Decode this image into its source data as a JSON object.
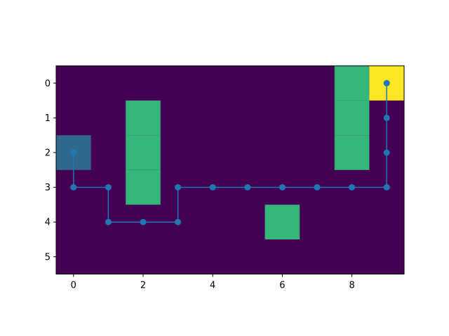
{
  "chart_data": {
    "type": "heatmap",
    "title": "",
    "xlabel": "",
    "ylabel": "",
    "rows": 6,
    "cols": 10,
    "xlim": [
      -0.5,
      9.5
    ],
    "ylim": [
      5.5,
      -0.5
    ],
    "y_inverted": true,
    "grid": false,
    "xticks": [
      0,
      2,
      4,
      6,
      8
    ],
    "yticks": [
      0,
      1,
      2,
      3,
      4,
      5
    ],
    "colors": {
      "empty": "#440154",
      "obstacle": "#35b779",
      "goal": "#fde725",
      "start": "#31688e",
      "path": "#1f77b4"
    },
    "cells": [
      {
        "row": 0,
        "col": 8,
        "kind": "obstacle"
      },
      {
        "row": 1,
        "col": 8,
        "kind": "obstacle"
      },
      {
        "row": 2,
        "col": 8,
        "kind": "obstacle"
      },
      {
        "row": 1,
        "col": 2,
        "kind": "obstacle"
      },
      {
        "row": 2,
        "col": 2,
        "kind": "obstacle"
      },
      {
        "row": 3,
        "col": 2,
        "kind": "obstacle"
      },
      {
        "row": 4,
        "col": 6,
        "kind": "obstacle"
      },
      {
        "row": 0,
        "col": 9,
        "kind": "goal"
      },
      {
        "row": 2,
        "col": 0,
        "kind": "start"
      }
    ],
    "series": [
      {
        "x": [
          0,
          0,
          1,
          1,
          2,
          3,
          3,
          4,
          5,
          6,
          7,
          8,
          9,
          9,
          9,
          9
        ],
        "y": [
          2,
          3,
          3,
          4,
          4,
          4,
          3,
          3,
          3,
          3,
          3,
          3,
          3,
          2,
          1,
          0
        ]
      }
    ]
  }
}
